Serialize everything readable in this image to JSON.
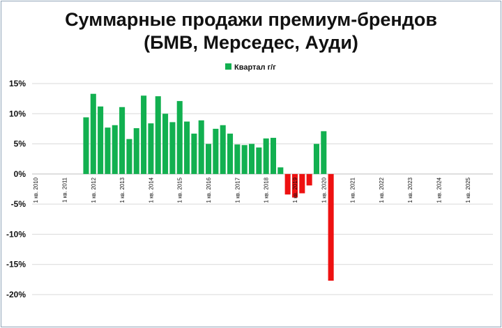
{
  "chart_data": {
    "type": "bar",
    "title_lines": [
      "Суммарные продажи премиум-брендов",
      "(БМВ, Мерседес, Ауди)"
    ],
    "legend": [
      {
        "label": "Квартал г/г",
        "color": "#12b050"
      }
    ],
    "legend_position": "top-center",
    "ylim": [
      -20,
      15
    ],
    "yticks": [
      15,
      10,
      5,
      0,
      -5,
      -10,
      -15,
      -20
    ],
    "ytick_labels": [
      "15%",
      "10%",
      "5%",
      "0%",
      "-5%",
      "-10%",
      "-15%",
      "-20%"
    ],
    "grid": true,
    "quarter_start": "2010 Q1",
    "quarter_count": 64,
    "xtick_labels": [
      "1 кв. 2010",
      "1 кв. 2011",
      "1 кв. 2012",
      "1 кв. 2013",
      "1 кв. 2014",
      "1 кв. 2015",
      "1 кв. 2016",
      "1 кв. 2017",
      "1 кв. 2018",
      "1 кв. 2019",
      "1 кв. 2020",
      "1 кв. 2021",
      "1 кв. 2022",
      "1 кв. 2023",
      "1 кв. 2024",
      "1 кв. 2025"
    ],
    "colors": {
      "positive": "#12b050",
      "negative": "#ee1111"
    },
    "series": [
      {
        "name": "Квартал г/г",
        "values": [
          null,
          null,
          null,
          null,
          null,
          null,
          null,
          9.4,
          13.3,
          11.2,
          7.7,
          8.1,
          11.1,
          5.8,
          7.6,
          13.0,
          8.4,
          12.9,
          10.0,
          8.6,
          12.1,
          8.7,
          6.7,
          8.9,
          5.0,
          7.5,
          8.1,
          6.7,
          4.9,
          4.8,
          5.0,
          4.4,
          5.9,
          6.0,
          1.1,
          -3.4,
          -3.9,
          -3.2,
          -1.9,
          5.0,
          7.1,
          -17.7,
          null,
          null,
          null,
          null,
          null,
          null,
          null,
          null,
          null,
          null,
          null,
          null,
          null,
          null,
          null,
          null,
          null,
          null,
          null,
          null,
          null,
          null
        ]
      }
    ]
  }
}
